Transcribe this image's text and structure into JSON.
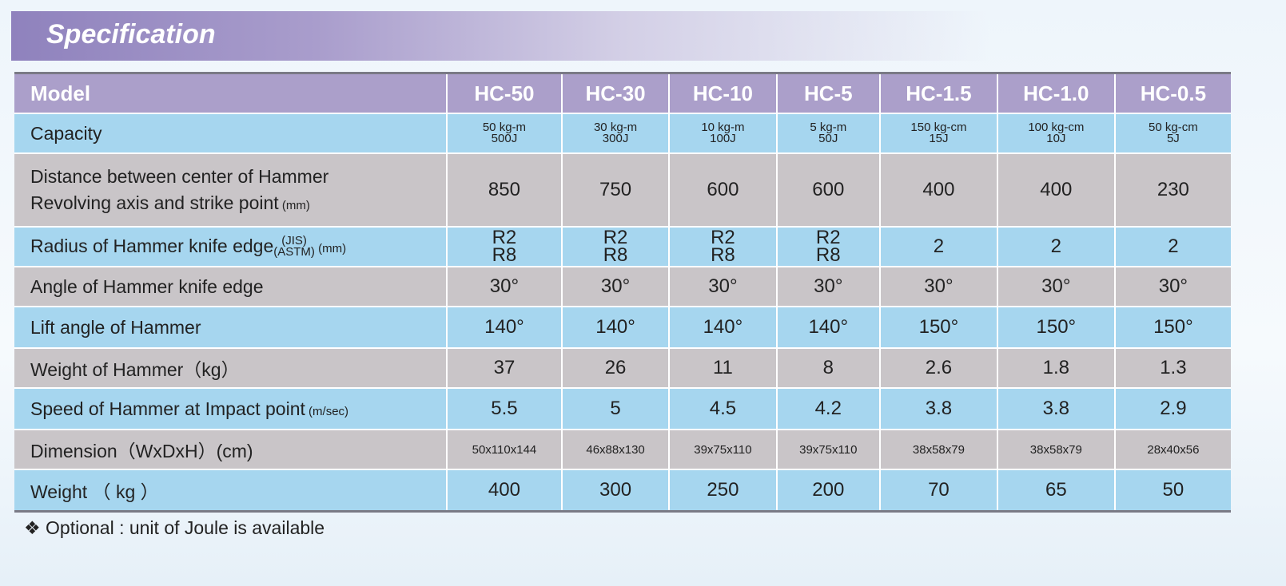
{
  "title": "Specification",
  "models": [
    "HC-50",
    "HC-30",
    "HC-10",
    "HC-5",
    "HC-1.5",
    "HC-1.0",
    "HC-0.5"
  ],
  "header_label": "Model",
  "rows": [
    {
      "label": "Capacity",
      "values": [
        [
          "50 kg-m",
          "500J"
        ],
        [
          "30 kg-m",
          "300J"
        ],
        [
          "10 kg-m",
          "100J"
        ],
        [
          "5 kg-m",
          "50J"
        ],
        [
          "150 kg-cm",
          "15J"
        ],
        [
          "100 kg-cm",
          "10J"
        ],
        [
          "50 kg-cm",
          "5J"
        ]
      ]
    },
    {
      "label1": "Distance between center of Hammer",
      "label2": "Revolving axis and strike point",
      "unit": "(mm)",
      "values": [
        "850",
        "750",
        "600",
        "600",
        "400",
        "400",
        "230"
      ]
    },
    {
      "label": "Radius of Hammer knife edge",
      "sup": "(JIS)",
      "sub": "(ASTM)",
      "unit": "(mm)",
      "values": [
        [
          "R2",
          "R8"
        ],
        [
          "R2",
          "R8"
        ],
        [
          "R2",
          "R8"
        ],
        [
          "R2",
          "R8"
        ],
        "2",
        "2",
        "2"
      ]
    },
    {
      "label": "Angle of Hammer knife edge",
      "values": [
        "30°",
        "30°",
        "30°",
        "30°",
        "30°",
        "30°",
        "30°"
      ]
    },
    {
      "label": "Lift angle of Hammer",
      "values": [
        "140°",
        "140°",
        "140°",
        "140°",
        "150°",
        "150°",
        "150°"
      ]
    },
    {
      "label": "Weight of Hammer（kg）",
      "values": [
        "37",
        "26",
        "11",
        "8",
        "2.6",
        "1.8",
        "1.3"
      ]
    },
    {
      "label": "Speed of Hammer at Impact point",
      "unit": "(m/sec)",
      "values": [
        "5.5",
        "5",
        "4.5",
        "4.2",
        "3.8",
        "3.8",
        "2.9"
      ]
    },
    {
      "label": "Dimension（WxDxH）(cm)",
      "values": [
        "50x110x144",
        "46x88x130",
        "39x75x110",
        "39x75x110",
        "38x58x79",
        "38x58x79",
        "28x40x56"
      ]
    },
    {
      "label": "Weight （ kg ）",
      "values": [
        "400",
        "300",
        "250",
        "200",
        "70",
        "65",
        "50"
      ]
    }
  ],
  "note": "❖ Optional : unit of Joule is available",
  "colors": {
    "header": "#ab9fca",
    "blue_row": "#a6d6ef",
    "gray_row": "#c9c5c8"
  }
}
